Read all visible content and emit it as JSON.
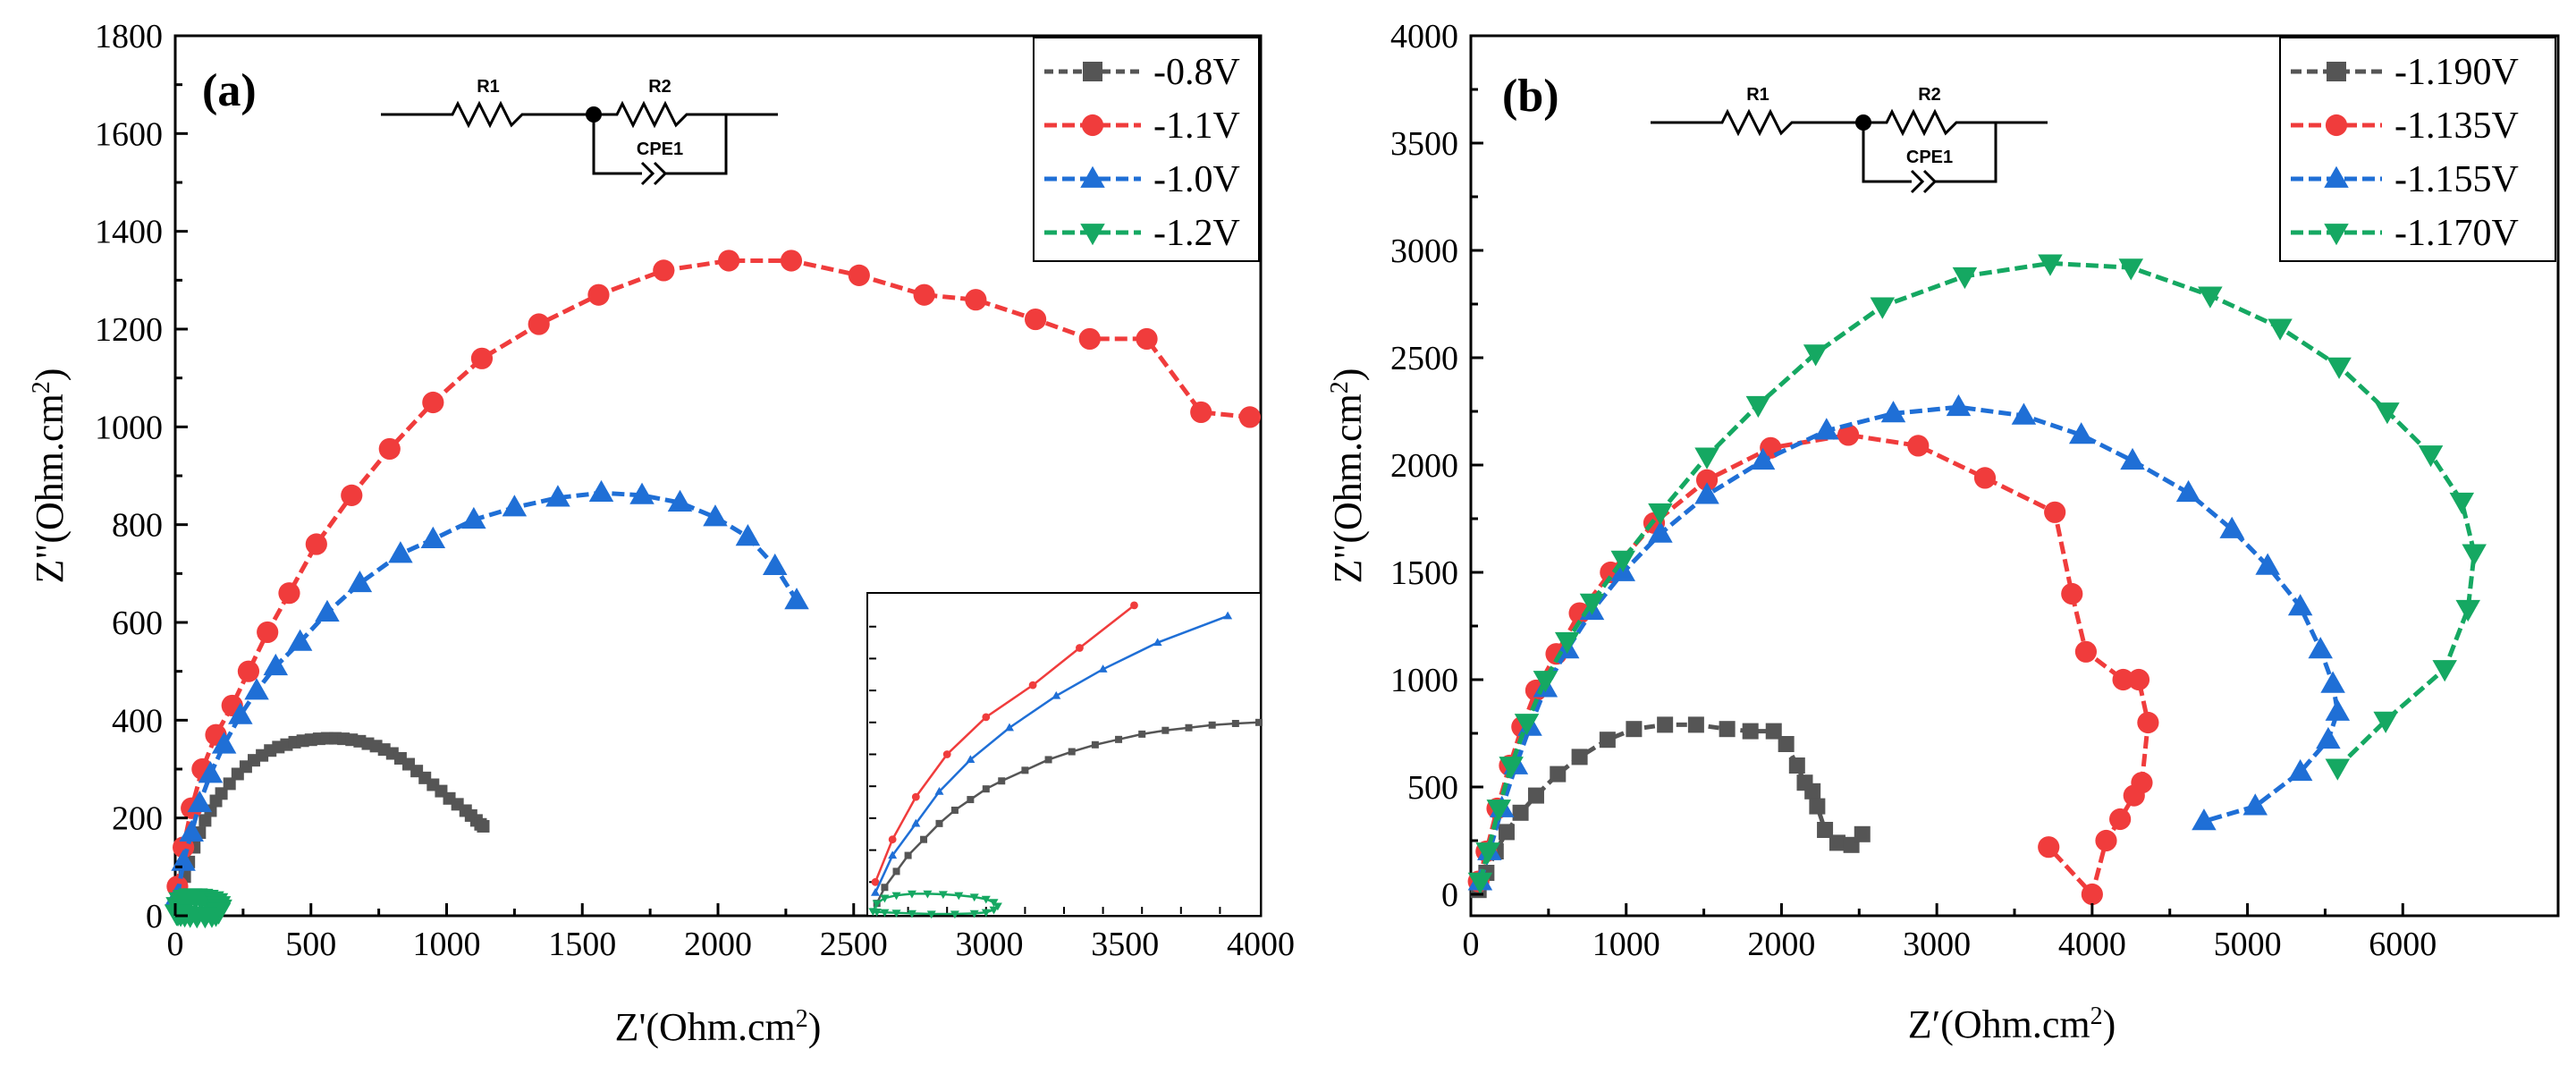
{
  "figure": {
    "panel_a_label": "(a)",
    "panel_b_label": "(b)",
    "circuit": {
      "r1": "R1",
      "r2": "R2",
      "cpe": "CPE1"
    }
  },
  "chart_data": [
    {
      "type": "line",
      "id": "a",
      "title": "",
      "xlabel": "Z'(Ohm.cm",
      "xlabel_sup": "2",
      "xlabel_end": ")",
      "ylabel": "Z\"(Ohm.cm",
      "ylabel_sup": "2",
      "ylabel_end": ")",
      "xlim": [
        0,
        4000
      ],
      "ylim": [
        0,
        1800
      ],
      "xticks": [
        0,
        500,
        1000,
        1500,
        2000,
        2500,
        3000,
        3500,
        4000
      ],
      "yticks": [
        0,
        200,
        400,
        600,
        800,
        1000,
        1200,
        1400,
        1600,
        1800
      ],
      "legend_position": "top-right",
      "series": [
        {
          "name": "-0.8V",
          "color": "#555555",
          "marker": "square",
          "dash": "10,6",
          "points": [
            [
              10,
              20
            ],
            [
              20,
              50
            ],
            [
              35,
              80
            ],
            [
              50,
              110
            ],
            [
              70,
              140
            ],
            [
              90,
              170
            ],
            [
              110,
              195
            ],
            [
              130,
              215
            ],
            [
              150,
              235
            ],
            [
              170,
              250
            ],
            [
              200,
              270
            ],
            [
              230,
              290
            ],
            [
              260,
              305
            ],
            [
              290,
              318
            ],
            [
              320,
              328
            ],
            [
              350,
              338
            ],
            [
              380,
              345
            ],
            [
              410,
              350
            ],
            [
              440,
              355
            ],
            [
              470,
              358
            ],
            [
              500,
              360
            ],
            [
              530,
              362
            ],
            [
              560,
              363
            ],
            [
              590,
              363
            ],
            [
              620,
              362
            ],
            [
              650,
              360
            ],
            [
              680,
              357
            ],
            [
              710,
              352
            ],
            [
              740,
              347
            ],
            [
              770,
              340
            ],
            [
              800,
              332
            ],
            [
              830,
              322
            ],
            [
              860,
              310
            ],
            [
              890,
              296
            ],
            [
              920,
              282
            ],
            [
              950,
              268
            ],
            [
              980,
              255
            ],
            [
              1010,
              240
            ],
            [
              1040,
              228
            ],
            [
              1070,
              215
            ],
            [
              1090,
              205
            ],
            [
              1110,
              195
            ],
            [
              1125,
              187
            ],
            [
              1135,
              183
            ]
          ]
        },
        {
          "name": "-1.1V",
          "color": "#F03C3C",
          "marker": "circle",
          "dash": "14,6",
          "points": [
            [
              8,
              60
            ],
            [
              30,
              140
            ],
            [
              60,
              220
            ],
            [
              100,
              300
            ],
            [
              150,
              370
            ],
            [
              210,
              430
            ],
            [
              270,
              500
            ],
            [
              340,
              580
            ],
            [
              420,
              660
            ],
            [
              520,
              760
            ],
            [
              650,
              860
            ],
            [
              790,
              955
            ],
            [
              950,
              1050
            ],
            [
              1130,
              1140
            ],
            [
              1340,
              1210
            ],
            [
              1560,
              1270
            ],
            [
              1800,
              1320
            ],
            [
              2040,
              1340
            ],
            [
              2270,
              1340
            ],
            [
              2520,
              1310
            ],
            [
              2760,
              1270
            ],
            [
              2950,
              1260
            ],
            [
              3170,
              1220
            ],
            [
              3370,
              1180
            ],
            [
              3580,
              1180
            ],
            [
              3780,
              1030
            ],
            [
              3960,
              1020
            ]
          ]
        },
        {
          "name": "-1.0V",
          "color": "#1F6FD6",
          "marker": "triangle-up",
          "dash": "14,6",
          "points": [
            [
              8,
              40
            ],
            [
              30,
              110
            ],
            [
              60,
              170
            ],
            [
              90,
              230
            ],
            [
              130,
              290
            ],
            [
              180,
              350
            ],
            [
              240,
              410
            ],
            [
              300,
              460
            ],
            [
              370,
              510
            ],
            [
              460,
              560
            ],
            [
              560,
              620
            ],
            [
              680,
              680
            ],
            [
              830,
              740
            ],
            [
              950,
              770
            ],
            [
              1100,
              810
            ],
            [
              1250,
              835
            ],
            [
              1410,
              855
            ],
            [
              1570,
              865
            ],
            [
              1720,
              860
            ],
            [
              1860,
              845
            ],
            [
              1990,
              815
            ],
            [
              2110,
              775
            ],
            [
              2210,
              715
            ],
            [
              2290,
              645
            ]
          ]
        },
        {
          "name": "-1.2V",
          "color": "#15A862",
          "marker": "triangle-down",
          "dash": "14,6",
          "points": [
            [
              5,
              5
            ],
            [
              10,
              20
            ],
            [
              20,
              30
            ],
            [
              35,
              35
            ],
            [
              55,
              38
            ],
            [
              75,
              38
            ],
            [
              95,
              37
            ],
            [
              115,
              35
            ],
            [
              135,
              32
            ],
            [
              150,
              28
            ],
            [
              160,
              22
            ],
            [
              165,
              15
            ],
            [
              160,
              8
            ],
            [
              150,
              3
            ],
            [
              135,
              1
            ],
            [
              110,
              0
            ],
            [
              80,
              0
            ],
            [
              55,
              1
            ],
            [
              35,
              2
            ],
            [
              20,
              3
            ],
            [
              10,
              4
            ]
          ]
        }
      ]
    },
    {
      "type": "line",
      "id": "b",
      "title": "",
      "xlabel": "Z′(Ohm.cm",
      "xlabel_sup": "2",
      "xlabel_end": ")",
      "ylabel": "Z\"(Ohm.cm",
      "ylabel_sup": "2",
      "ylabel_end": ")",
      "xlim": [
        0,
        7000
      ],
      "ylim": [
        -100,
        4000
      ],
      "xticks": [
        0,
        1000,
        2000,
        3000,
        4000,
        5000,
        6000
      ],
      "yticks": [
        0,
        500,
        1000,
        1500,
        2000,
        2500,
        3000,
        3500,
        4000
      ],
      "legend_position": "top-right",
      "series": [
        {
          "name": "-1.190V",
          "color": "#555555",
          "marker": "square",
          "dash": "12,6",
          "points": [
            [
              50,
              20
            ],
            [
              100,
              100
            ],
            [
              160,
              200
            ],
            [
              230,
              290
            ],
            [
              320,
              380
            ],
            [
              420,
              460
            ],
            [
              560,
              560
            ],
            [
              700,
              640
            ],
            [
              880,
              720
            ],
            [
              1050,
              770
            ],
            [
              1250,
              790
            ],
            [
              1450,
              790
            ],
            [
              1650,
              770
            ],
            [
              1800,
              760
            ],
            [
              1950,
              760
            ],
            [
              2030,
              700
            ],
            [
              2100,
              600
            ],
            [
              2150,
              520
            ],
            [
              2200,
              480
            ],
            [
              2230,
              410
            ],
            [
              2280,
              300
            ],
            [
              2360,
              240
            ],
            [
              2450,
              230
            ],
            [
              2520,
              280
            ]
          ]
        },
        {
          "name": "-1.135V",
          "color": "#F03C3C",
          "marker": "circle",
          "dash": "14,6",
          "points": [
            [
              50,
              60
            ],
            [
              100,
              200
            ],
            [
              170,
              400
            ],
            [
              250,
              600
            ],
            [
              330,
              780
            ],
            [
              420,
              950
            ],
            [
              550,
              1120
            ],
            [
              700,
              1310
            ],
            [
              900,
              1500
            ],
            [
              1180,
              1730
            ],
            [
              1520,
              1930
            ],
            [
              1930,
              2080
            ],
            [
              2430,
              2140
            ],
            [
              2880,
              2090
            ],
            [
              3310,
              1940
            ],
            [
              3760,
              1780
            ],
            [
              3870,
              1400
            ],
            [
              3960,
              1130
            ],
            [
              4200,
              1000
            ],
            [
              4300,
              1000
            ],
            [
              4360,
              800
            ],
            [
              4320,
              520
            ],
            [
              4270,
              460
            ],
            [
              4180,
              350
            ],
            [
              4090,
              250
            ],
            [
              4000,
              0
            ],
            [
              3720,
              220
            ]
          ]
        },
        {
          "name": "-1.155V",
          "color": "#1F6FD6",
          "marker": "triangle-up",
          "dash": "14,6",
          "points": [
            [
              60,
              60
            ],
            [
              120,
              200
            ],
            [
              200,
              400
            ],
            [
              290,
              600
            ],
            [
              380,
              780
            ],
            [
              480,
              960
            ],
            [
              620,
              1140
            ],
            [
              780,
              1320
            ],
            [
              980,
              1500
            ],
            [
              1220,
              1680
            ],
            [
              1520,
              1860
            ],
            [
              1880,
              2020
            ],
            [
              2290,
              2160
            ],
            [
              2720,
              2240
            ],
            [
              3140,
              2270
            ],
            [
              3560,
              2230
            ],
            [
              3930,
              2140
            ],
            [
              4260,
              2020
            ],
            [
              4620,
              1870
            ],
            [
              4900,
              1700
            ],
            [
              5130,
              1530
            ],
            [
              5340,
              1340
            ],
            [
              5470,
              1140
            ],
            [
              5550,
              980
            ],
            [
              5580,
              850
            ],
            [
              5520,
              720
            ],
            [
              5340,
              570
            ],
            [
              5050,
              410
            ],
            [
              4720,
              340
            ]
          ]
        },
        {
          "name": "-1.170V",
          "color": "#15A862",
          "marker": "triangle-down",
          "dash": "14,6",
          "points": [
            [
              60,
              60
            ],
            [
              110,
              200
            ],
            [
              180,
              400
            ],
            [
              260,
              600
            ],
            [
              360,
              800
            ],
            [
              480,
              1000
            ],
            [
              620,
              1180
            ],
            [
              780,
              1360
            ],
            [
              980,
              1560
            ],
            [
              1220,
              1780
            ],
            [
              1520,
              2040
            ],
            [
              1850,
              2280
            ],
            [
              2220,
              2520
            ],
            [
              2650,
              2740
            ],
            [
              3180,
              2880
            ],
            [
              3730,
              2940
            ],
            [
              4250,
              2920
            ],
            [
              4760,
              2790
            ],
            [
              5210,
              2640
            ],
            [
              5590,
              2460
            ],
            [
              5900,
              2250
            ],
            [
              6180,
              2050
            ],
            [
              6380,
              1830
            ],
            [
              6460,
              1590
            ],
            [
              6420,
              1330
            ],
            [
              6270,
              1050
            ],
            [
              5890,
              810
            ],
            [
              5580,
              590
            ]
          ]
        }
      ]
    }
  ]
}
